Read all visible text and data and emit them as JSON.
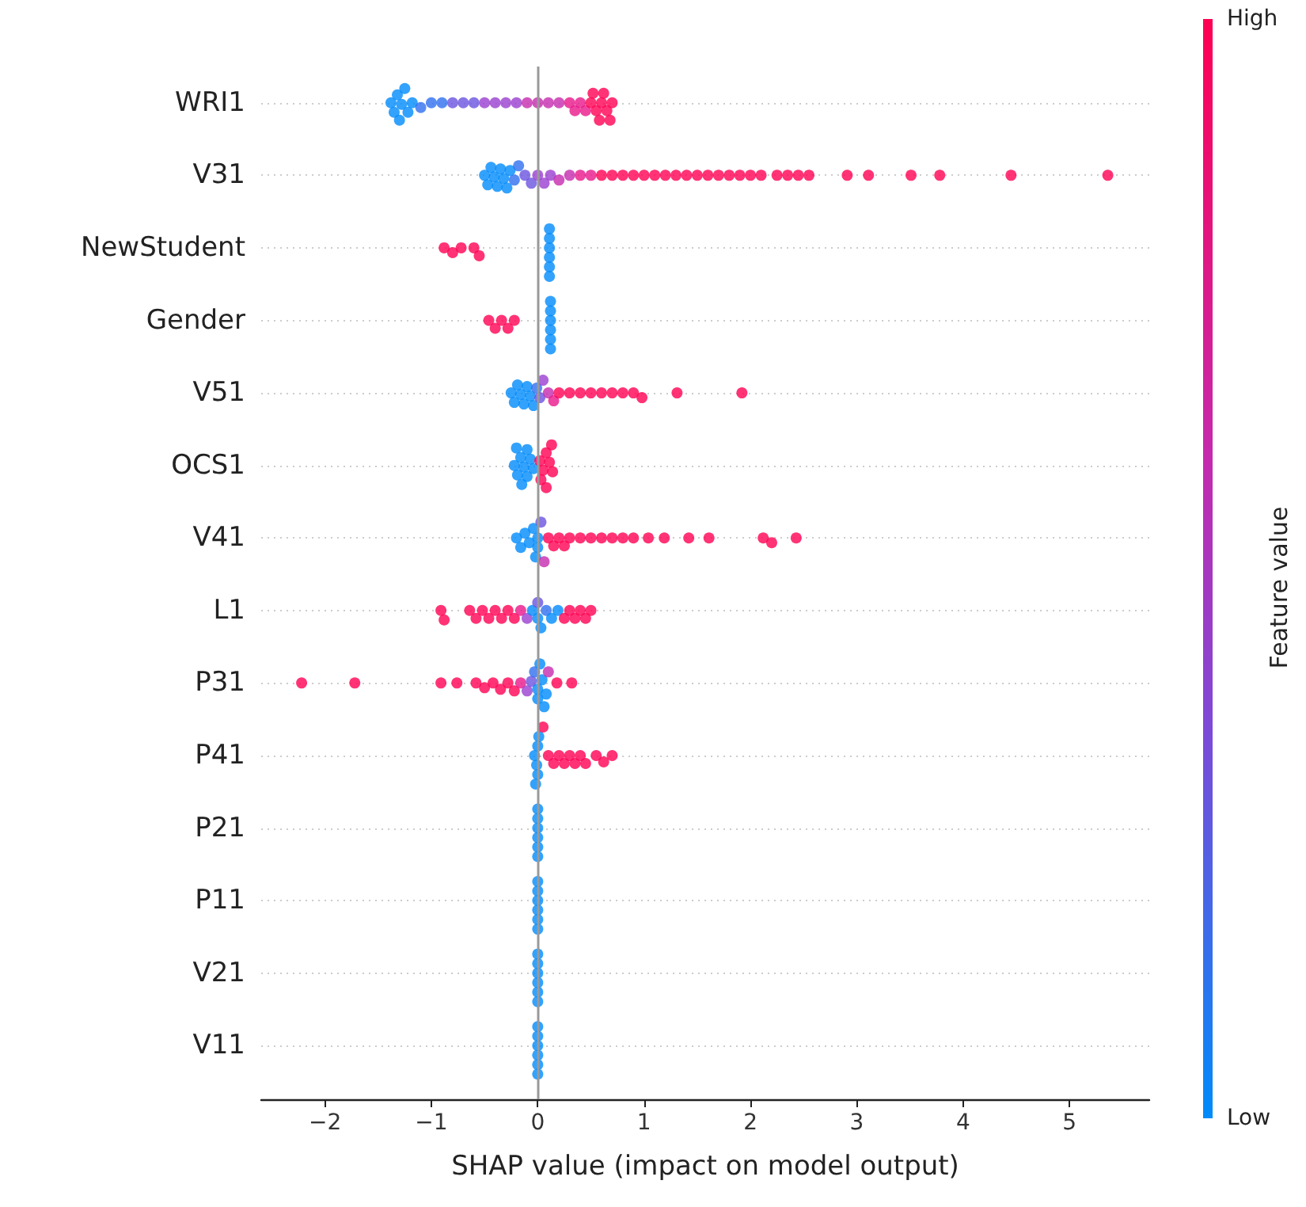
{
  "chart_data": {
    "type": "scatter",
    "orientation": "horizontal",
    "xlabel": "SHAP value (impact on model output)",
    "clabel": "Feature value",
    "annotations": [
      "High",
      "Low"
    ],
    "categories": [
      "WRI1",
      "V31",
      "NewStudent",
      "Gender",
      "V51",
      "OCS1",
      "V41",
      "L1",
      "P31",
      "P41",
      "P21",
      "P11",
      "V21",
      "V11"
    ],
    "xlim": [
      -2.6,
      5.75
    ],
    "xticks": [
      -2,
      -1,
      0,
      1,
      2,
      3,
      4,
      5
    ],
    "grid": "y",
    "marker": "circle",
    "ref_lines": [
      {
        "axis": "x",
        "value": 0,
        "color": "#999999"
      }
    ],
    "series": [
      {
        "x": [
          "WRI1",
          "WRI1",
          "WRI1",
          "WRI1",
          "WRI1",
          "WRI1",
          "WRI1",
          "WRI1",
          "WRI1",
          "WRI1",
          "WRI1",
          "WRI1",
          "WRI1",
          "WRI1",
          "WRI1",
          "WRI1",
          "WRI1",
          "WRI1",
          "WRI1",
          "WRI1",
          "WRI1",
          "WRI1",
          "WRI1",
          "WRI1",
          "WRI1",
          "WRI1",
          "WRI1",
          "WRI1",
          "WRI1",
          "WRI1",
          "WRI1",
          "WRI1",
          "WRI1",
          "WRI1",
          "WRI1"
        ],
        "values": [
          -1.38,
          -1.35,
          -1.32,
          -1.3,
          -1.28,
          -1.25,
          -1.22,
          -1.18,
          -1.1,
          -1.0,
          -0.9,
          -0.8,
          -0.7,
          -0.6,
          -0.5,
          -0.4,
          -0.3,
          -0.2,
          -0.1,
          0,
          0.1,
          0.2,
          0.3,
          0.35,
          0.4,
          0.45,
          0.5,
          0.52,
          0.55,
          0.58,
          0.6,
          0.62,
          0.65,
          0.68,
          0.7
        ],
        "colors": [
          "#008bfb",
          "#008bfb",
          "#008bfb",
          "#008bfb",
          "#008bfb",
          "#008bfb",
          "#008bfb",
          "#008bfb",
          "#2f6ff0",
          "#2f6ff0",
          "#2f6ff0",
          "#6a52e0",
          "#6a52e0",
          "#6a52e0",
          "#9a3fcf",
          "#9a3fcf",
          "#9a3fcf",
          "#9a3fcf",
          "#c52aae",
          "#c52aae",
          "#c52aae",
          "#c52aae",
          "#e8178a",
          "#e8178a",
          "#e8178a",
          "#e8178a",
          "#ff0052",
          "#ff0052",
          "#ff0052",
          "#ff0052",
          "#ff0052",
          "#ff0052",
          "#ff0052",
          "#ff0052",
          "#ff0052"
        ]
      },
      {
        "x": [
          "V31",
          "V31",
          "V31",
          "V31",
          "V31",
          "V31",
          "V31",
          "V31",
          "V31",
          "V31",
          "V31",
          "V31",
          "V31",
          "V31",
          "V31",
          "V31",
          "V31",
          "V31",
          "V31",
          "V31",
          "V31",
          "V31",
          "V31",
          "V31",
          "V31",
          "V31",
          "V31",
          "V31",
          "V31",
          "V31",
          "V31",
          "V31",
          "V31",
          "V31",
          "V31",
          "V31",
          "V31",
          "V31",
          "V31",
          "V31",
          "V31",
          "V31",
          "V31",
          "V31",
          "V31",
          "V31"
        ],
        "values": [
          -0.5,
          -0.47,
          -0.44,
          -0.41,
          -0.38,
          -0.35,
          -0.32,
          -0.29,
          -0.26,
          -0.22,
          -0.18,
          -0.12,
          -0.06,
          0,
          0.06,
          0.12,
          0.2,
          0.3,
          0.4,
          0.5,
          0.6,
          0.7,
          0.8,
          0.9,
          1.0,
          1.1,
          1.2,
          1.3,
          1.4,
          1.5,
          1.6,
          1.7,
          1.8,
          1.9,
          2.0,
          2.1,
          2.25,
          2.35,
          2.45,
          2.55,
          2.91,
          3.11,
          3.51,
          3.78,
          4.45,
          5.36
        ],
        "colors": [
          "#008bfb",
          "#008bfb",
          "#008bfb",
          "#008bfb",
          "#008bfb",
          "#008bfb",
          "#008bfb",
          "#008bfb",
          "#008bfb",
          "#2f6ff0",
          "#2f6ff0",
          "#6a52e0",
          "#6a52e0",
          "#9a3fcf",
          "#9a3fcf",
          "#9a3fcf",
          "#c52aae",
          "#c52aae",
          "#e8178a",
          "#e8178a",
          "#ff0052",
          "#ff0052",
          "#ff0052",
          "#ff0052",
          "#ff0052",
          "#ff0052",
          "#ff0052",
          "#ff0052",
          "#ff0052",
          "#ff0052",
          "#ff0052",
          "#ff0052",
          "#ff0052",
          "#ff0052",
          "#ff0052",
          "#ff0052",
          "#ff0052",
          "#ff0052",
          "#ff0052",
          "#ff0052",
          "#ff0052",
          "#ff0052",
          "#ff0052",
          "#ff0052",
          "#ff0052",
          "#ff0052"
        ]
      },
      {
        "x": [
          "NewStudent",
          "NewStudent",
          "NewStudent",
          "NewStudent",
          "NewStudent",
          "NewStudent",
          "NewStudent",
          "NewStudent",
          "NewStudent",
          "NewStudent",
          "NewStudent"
        ],
        "values": [
          -0.88,
          -0.8,
          -0.72,
          -0.6,
          -0.55,
          0.11,
          0.11,
          0.11,
          0.11,
          0.11,
          0.11
        ],
        "colors": [
          "#ff0052",
          "#ff0052",
          "#ff0052",
          "#ff0052",
          "#ff0052",
          "#008bfb",
          "#008bfb",
          "#008bfb",
          "#008bfb",
          "#008bfb",
          "#008bfb"
        ]
      },
      {
        "x": [
          "Gender",
          "Gender",
          "Gender",
          "Gender",
          "Gender",
          "Gender",
          "Gender",
          "Gender",
          "Gender",
          "Gender",
          "Gender"
        ],
        "values": [
          -0.46,
          -0.4,
          -0.34,
          -0.28,
          -0.22,
          0.12,
          0.12,
          0.12,
          0.12,
          0.12,
          0.12
        ],
        "colors": [
          "#ff0052",
          "#ff0052",
          "#ff0052",
          "#ff0052",
          "#ff0052",
          "#008bfb",
          "#008bfb",
          "#008bfb",
          "#008bfb",
          "#008bfb",
          "#008bfb"
        ]
      },
      {
        "x": [
          "V51",
          "V51",
          "V51",
          "V51",
          "V51",
          "V51",
          "V51",
          "V51",
          "V51",
          "V51",
          "V51",
          "V51",
          "V51",
          "V51",
          "V51",
          "V51",
          "V51",
          "V51",
          "V51",
          "V51",
          "V51",
          "V51",
          "V51",
          "V51"
        ],
        "values": [
          -0.25,
          -0.22,
          -0.19,
          -0.16,
          -0.13,
          -0.1,
          -0.07,
          -0.04,
          -0.01,
          0.02,
          0.05,
          0.1,
          0.15,
          0.2,
          0.3,
          0.4,
          0.5,
          0.6,
          0.7,
          0.8,
          0.9,
          0.98,
          1.31,
          1.92
        ],
        "colors": [
          "#008bfb",
          "#008bfb",
          "#008bfb",
          "#008bfb",
          "#008bfb",
          "#008bfb",
          "#008bfb",
          "#008bfb",
          "#2f6ff0",
          "#6a52e0",
          "#9a3fcf",
          "#c52aae",
          "#e8178a",
          "#ff0052",
          "#ff0052",
          "#ff0052",
          "#ff0052",
          "#ff0052",
          "#ff0052",
          "#ff0052",
          "#ff0052",
          "#ff0052",
          "#ff0052",
          "#ff0052"
        ]
      },
      {
        "x": [
          "OCS1",
          "OCS1",
          "OCS1",
          "OCS1",
          "OCS1",
          "OCS1",
          "OCS1",
          "OCS1",
          "OCS1",
          "OCS1",
          "OCS1",
          "OCS1",
          "OCS1",
          "OCS1",
          "OCS1",
          "OCS1",
          "OCS1",
          "OCS1"
        ],
        "values": [
          -0.22,
          -0.19,
          -0.16,
          -0.13,
          -0.1,
          -0.07,
          -0.04,
          -0.2,
          -0.15,
          -0.1,
          0.02,
          0.05,
          0.08,
          0.11,
          0.14,
          0.03,
          0.08,
          0.13
        ],
        "colors": [
          "#008bfb",
          "#008bfb",
          "#008bfb",
          "#008bfb",
          "#008bfb",
          "#008bfb",
          "#008bfb",
          "#008bfb",
          "#008bfb",
          "#008bfb",
          "#ff0052",
          "#ff0052",
          "#ff0052",
          "#ff0052",
          "#ff0052",
          "#ff0052",
          "#ff0052",
          "#ff0052"
        ]
      },
      {
        "x": [
          "V41",
          "V41",
          "V41",
          "V41",
          "V41",
          "V41",
          "V41",
          "V41",
          "V41",
          "V41",
          "V41",
          "V41",
          "V41",
          "V41",
          "V41",
          "V41",
          "V41",
          "V41",
          "V41",
          "V41",
          "V41",
          "V41",
          "V41",
          "V41",
          "V41",
          "V41",
          "V41",
          "V41"
        ],
        "values": [
          -0.2,
          -0.16,
          -0.12,
          -0.08,
          -0.04,
          0,
          0,
          -0.02,
          0.03,
          0.06,
          0.1,
          0.15,
          0.2,
          0.25,
          0.3,
          0.4,
          0.5,
          0.6,
          0.7,
          0.8,
          0.9,
          1.04,
          1.19,
          1.42,
          1.61,
          2.12,
          2.2,
          2.43
        ],
        "colors": [
          "#008bfb",
          "#008bfb",
          "#008bfb",
          "#008bfb",
          "#008bfb",
          "#008bfb",
          "#008bfb",
          "#008bfb",
          "#6a52e0",
          "#c52aae",
          "#ff0052",
          "#ff0052",
          "#ff0052",
          "#ff0052",
          "#ff0052",
          "#ff0052",
          "#ff0052",
          "#ff0052",
          "#ff0052",
          "#ff0052",
          "#ff0052",
          "#ff0052",
          "#ff0052",
          "#ff0052",
          "#ff0052",
          "#ff0052",
          "#ff0052",
          "#ff0052"
        ]
      },
      {
        "x": [
          "L1",
          "L1",
          "L1",
          "L1",
          "L1",
          "L1",
          "L1",
          "L1",
          "L1",
          "L1",
          "L1",
          "L1",
          "L1",
          "L1",
          "L1",
          "L1",
          "L1",
          "L1",
          "L1",
          "L1",
          "L1",
          "L1",
          "L1",
          "L1",
          "L1"
        ],
        "values": [
          -0.91,
          -0.88,
          -0.64,
          -0.58,
          -0.52,
          -0.46,
          -0.4,
          -0.34,
          -0.28,
          -0.22,
          -0.16,
          -0.1,
          -0.05,
          0,
          0,
          0.03,
          0.08,
          0.13,
          0.19,
          0.25,
          0.3,
          0.35,
          0.4,
          0.45,
          0.5
        ],
        "colors": [
          "#ff0052",
          "#ff0052",
          "#ff0052",
          "#ff0052",
          "#ff0052",
          "#ff0052",
          "#ff0052",
          "#ff0052",
          "#ff0052",
          "#ff0052",
          "#e8178a",
          "#9a3fcf",
          "#008bfb",
          "#008bfb",
          "#6a52e0",
          "#008bfb",
          "#2f6ff0",
          "#008bfb",
          "#008bfb",
          "#ff0052",
          "#ff0052",
          "#ff0052",
          "#ff0052",
          "#ff0052",
          "#ff0052"
        ]
      },
      {
        "x": [
          "P31",
          "P31",
          "P31",
          "P31",
          "P31",
          "P31",
          "P31",
          "P31",
          "P31",
          "P31",
          "P31",
          "P31",
          "P31",
          "P31",
          "P31",
          "P31",
          "P31",
          "P31",
          "P31",
          "P31",
          "P31",
          "P31",
          "P31"
        ],
        "values": [
          -2.22,
          -1.72,
          -0.91,
          -0.76,
          -0.58,
          -0.5,
          -0.42,
          -0.35,
          -0.28,
          -0.22,
          -0.16,
          -0.1,
          -0.06,
          -0.03,
          0,
          0,
          0.02,
          0.04,
          0.06,
          0.08,
          0.1,
          0.18,
          0.32
        ],
        "colors": [
          "#ff0052",
          "#ff0052",
          "#ff0052",
          "#ff0052",
          "#ff0052",
          "#ff0052",
          "#ff0052",
          "#ff0052",
          "#ff0052",
          "#ff0052",
          "#e8178a",
          "#9a3fcf",
          "#6a52e0",
          "#2f6ff0",
          "#008bfb",
          "#008bfb",
          "#008bfb",
          "#008bfb",
          "#008bfb",
          "#008bfb",
          "#c52aae",
          "#ff0052",
          "#ff0052"
        ]
      },
      {
        "x": [
          "P41",
          "P41",
          "P41",
          "P41",
          "P41",
          "P41",
          "P41",
          "P41",
          "P41",
          "P41",
          "P41",
          "P41",
          "P41",
          "P41",
          "P41",
          "P41",
          "P41",
          "P41"
        ],
        "values": [
          -0.03,
          -0.01,
          0,
          0,
          0.01,
          -0.02,
          0.05,
          0.1,
          0.15,
          0.2,
          0.25,
          0.3,
          0.35,
          0.4,
          0.45,
          0.55,
          0.62,
          0.7
        ],
        "colors": [
          "#008bfb",
          "#008bfb",
          "#008bfb",
          "#008bfb",
          "#008bfb",
          "#008bfb",
          "#ff0052",
          "#ff0052",
          "#ff0052",
          "#ff0052",
          "#ff0052",
          "#ff0052",
          "#ff0052",
          "#ff0052",
          "#ff0052",
          "#ff0052",
          "#ff0052",
          "#ff0052"
        ]
      },
      {
        "x": [
          "P21",
          "P21",
          "P21",
          "P21",
          "P21",
          "P21"
        ],
        "values": [
          0,
          0,
          0,
          0,
          0,
          0
        ],
        "color": "#008bfb"
      },
      {
        "x": [
          "P11",
          "P11",
          "P11",
          "P11",
          "P11",
          "P11"
        ],
        "values": [
          0,
          0,
          0,
          0,
          0,
          0
        ],
        "color": "#008bfb"
      },
      {
        "x": [
          "V21",
          "V21",
          "V21",
          "V21",
          "V21",
          "V21"
        ],
        "values": [
          0,
          0,
          0,
          0,
          0,
          0
        ],
        "color": "#008bfb"
      },
      {
        "x": [
          "V11",
          "V11",
          "V11",
          "V11",
          "V11",
          "V11"
        ],
        "values": [
          0,
          0,
          0,
          0,
          0,
          0
        ],
        "color": "#008bfb"
      }
    ]
  }
}
